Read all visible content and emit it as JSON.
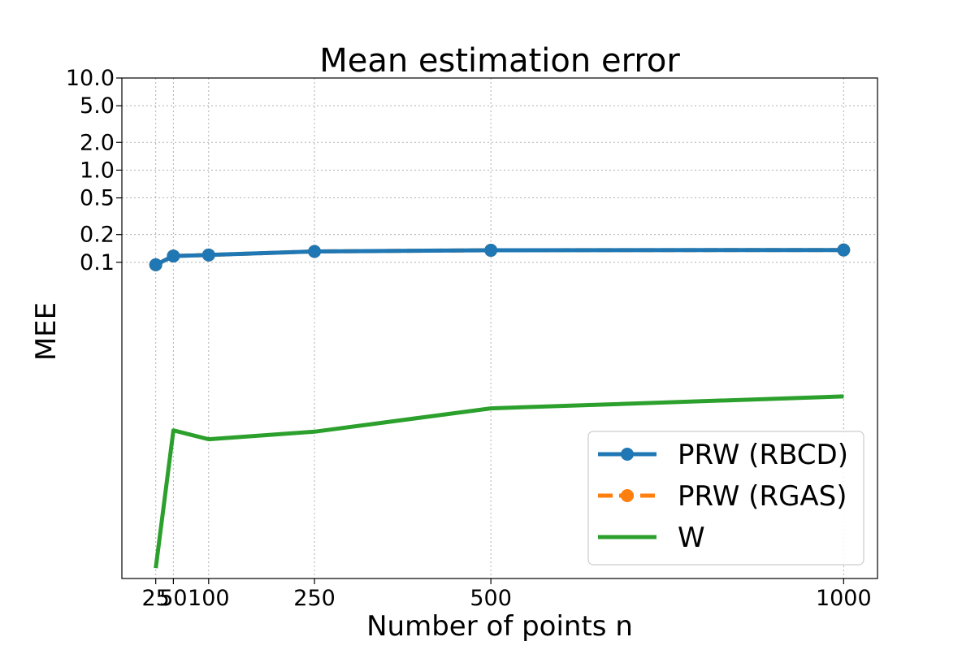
{
  "chart_data": {
    "type": "line",
    "title": "Mean estimation error",
    "xlabel": "Number of points n",
    "ylabel": "MEE",
    "x": [
      25,
      50,
      100,
      250,
      500,
      1000
    ],
    "x_ticks": [
      25,
      50,
      100,
      250,
      500,
      1000
    ],
    "x_tick_labels": [
      "25",
      "50",
      "100",
      "250",
      "500",
      "1000"
    ],
    "y_scale": "log",
    "y_ticks": [
      0.1,
      0.2,
      0.5,
      1.0,
      2.0,
      5.0,
      10.0
    ],
    "y_tick_labels": [
      "0.1",
      "0.2",
      "0.5",
      "1.0",
      "2.0",
      "5.0",
      "10.0"
    ],
    "xlim": [
      -23,
      1048
    ],
    "ylim": [
      3.7e-05,
      10
    ],
    "grid": true,
    "legend_position": "lower-right",
    "series": [
      {
        "name": "PRW (RBCD)",
        "color": "#1f77b4",
        "style": "solid",
        "marker": "circle",
        "values": [
          0.094,
          0.117,
          0.12,
          0.131,
          0.135,
          0.136
        ]
      },
      {
        "name": "PRW (RGAS)",
        "color": "#ff7f0e",
        "style": "dashed",
        "marker": "circle",
        "values": [
          0.094,
          0.117,
          0.12,
          0.131,
          0.135,
          0.136
        ]
      },
      {
        "name": "W",
        "color": "#2ca02c",
        "style": "solid",
        "marker": "none",
        "values": [
          4.8e-05,
          0.0015,
          0.0012,
          0.00145,
          0.0026,
          0.0035
        ]
      }
    ]
  }
}
